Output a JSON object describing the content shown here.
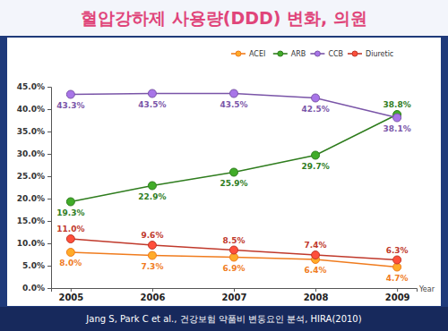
{
  "chart_data": {
    "type": "line",
    "title": "혈압강하제 사용량(DDD) 변화, 의원",
    "source": "Jang S, Park C  et al., 건강보험 약품비 변동요인 분석, HIRA(2010)",
    "x_label": "Year",
    "categories": [
      "2005",
      "2006",
      "2007",
      "2008",
      "2009"
    ],
    "series": [
      {
        "name": "ACEI",
        "color": "#f07c1e",
        "marker": "circle",
        "values": [
          8.0,
          7.3,
          6.9,
          6.4,
          4.7
        ],
        "value_labels": [
          "8.0%",
          "7.3%",
          "6.9%",
          "6.4%",
          "4.7%"
        ]
      },
      {
        "name": "ARB",
        "color": "#2f7d1e",
        "marker": "circle",
        "values": [
          19.3,
          22.9,
          25.9,
          29.7,
          38.8
        ],
        "value_labels": [
          "19.3%",
          "22.9%",
          "25.9%",
          "29.7%",
          "38.8%"
        ]
      },
      {
        "name": "CCB",
        "color": "#7a55a8",
        "marker": "circle",
        "values": [
          43.3,
          43.5,
          43.5,
          42.5,
          38.1
        ],
        "value_labels": [
          "43.3%",
          "43.5%",
          "43.5%",
          "42.5%",
          "38.1%"
        ]
      },
      {
        "name": "Diuretic",
        "color": "#c0392b",
        "marker": "circle",
        "values": [
          11.0,
          9.6,
          8.5,
          7.4,
          6.3
        ],
        "value_labels": [
          "11.0%",
          "9.6%",
          "8.5%",
          "7.4%",
          "6.3%"
        ]
      }
    ],
    "ylim": [
      0,
      45
    ],
    "yticks": [
      {
        "value": 0,
        "label": "0.0%"
      },
      {
        "value": 5,
        "label": "5.0%"
      },
      {
        "value": 10,
        "label": "10.0%"
      },
      {
        "value": 15,
        "label": "15.0%"
      },
      {
        "value": 20,
        "label": "20.0%"
      },
      {
        "value": 25,
        "label": "25.0%"
      },
      {
        "value": 30,
        "label": "30.0%"
      },
      {
        "value": 35,
        "label": "35.0%"
      },
      {
        "value": 40,
        "label": "40.0%"
      },
      {
        "value": 45,
        "label": "45.0%"
      }
    ],
    "grid": false,
    "legend": "top",
    "data_labels": true
  }
}
